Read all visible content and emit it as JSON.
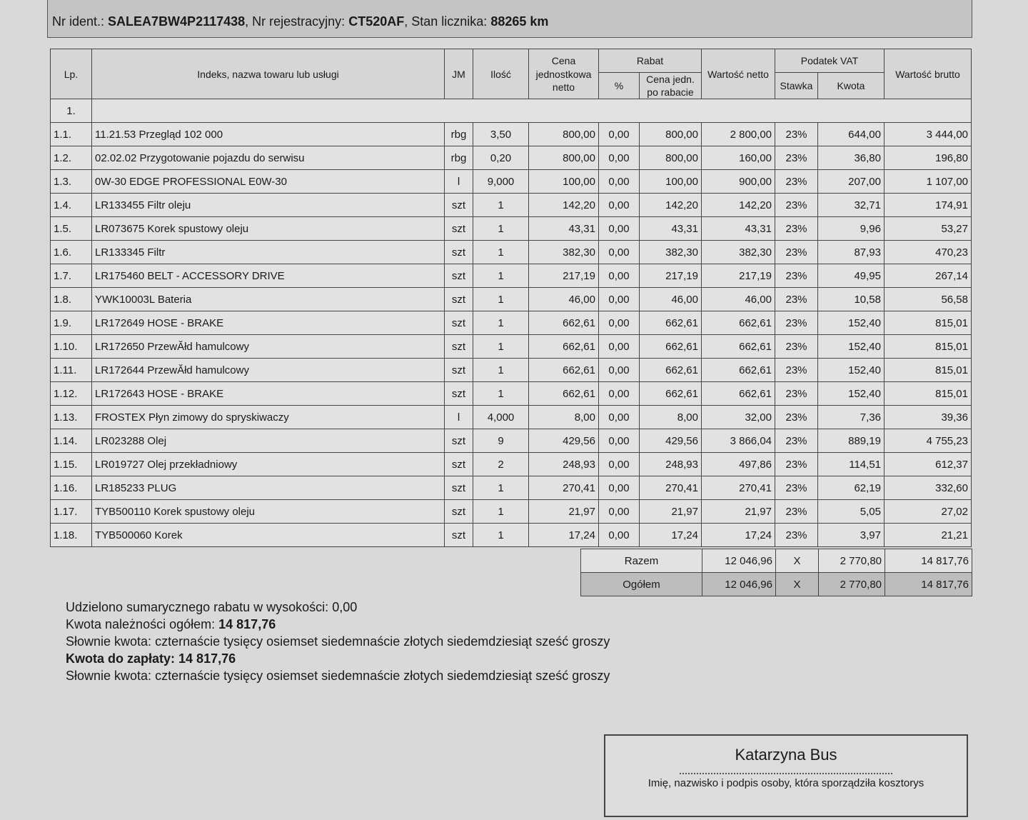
{
  "vehicle": {
    "ident_label": "Nr ident.:",
    "ident_value": "SALEA7BW4P2117438",
    "reg_label": ", Nr rejestracyjny:",
    "reg_value": "CT520AF",
    "odo_label": ", Stan licznika:",
    "odo_value": "88265 km"
  },
  "headers": {
    "lp": "Lp.",
    "name": "Indeks, nazwa towaru lub usługi",
    "jm": "JM",
    "qty": "Ilość",
    "price": "Cena jednostkowa netto",
    "discount": "Rabat",
    "discount_pct": "%",
    "discount_price": "Cena jedn. po rabacie",
    "net": "Wartość netto",
    "vat": "Podatek VAT",
    "vat_rate": "Stawka",
    "vat_amount": "Kwota",
    "gross": "Wartość brutto"
  },
  "group_label": "1.",
  "rows": [
    [
      "1.1.",
      "11.21.53 Przegląd 102 000",
      "rbg",
      "3,50",
      "800,00",
      "0,00",
      "800,00",
      "2 800,00",
      "23%",
      "644,00",
      "3 444,00"
    ],
    [
      "1.2.",
      "02.02.02 Przygotowanie pojazdu do serwisu",
      "rbg",
      "0,20",
      "800,00",
      "0,00",
      "800,00",
      "160,00",
      "23%",
      "36,80",
      "196,80"
    ],
    [
      "1.3.",
      "0W-30 EDGE PROFESSIONAL E0W-30",
      "l",
      "9,000",
      "100,00",
      "0,00",
      "100,00",
      "900,00",
      "23%",
      "207,00",
      "1 107,00"
    ],
    [
      "1.4.",
      "LR133455 Filtr oleju",
      "szt",
      "1",
      "142,20",
      "0,00",
      "142,20",
      "142,20",
      "23%",
      "32,71",
      "174,91"
    ],
    [
      "1.5.",
      "LR073675 Korek spustowy oleju",
      "szt",
      "1",
      "43,31",
      "0,00",
      "43,31",
      "43,31",
      "23%",
      "9,96",
      "53,27"
    ],
    [
      "1.6.",
      "LR133345 Filtr",
      "szt",
      "1",
      "382,30",
      "0,00",
      "382,30",
      "382,30",
      "23%",
      "87,93",
      "470,23"
    ],
    [
      "1.7.",
      "LR175460 BELT - ACCESSORY DRIVE",
      "szt",
      "1",
      "217,19",
      "0,00",
      "217,19",
      "217,19",
      "23%",
      "49,95",
      "267,14"
    ],
    [
      "1.8.",
      "YWK10003L Bateria",
      "szt",
      "1",
      "46,00",
      "0,00",
      "46,00",
      "46,00",
      "23%",
      "10,58",
      "56,58"
    ],
    [
      "1.9.",
      "LR172649 HOSE - BRAKE",
      "szt",
      "1",
      "662,61",
      "0,00",
      "662,61",
      "662,61",
      "23%",
      "152,40",
      "815,01"
    ],
    [
      "1.10.",
      "LR172650 PrzewĂłd hamulcowy",
      "szt",
      "1",
      "662,61",
      "0,00",
      "662,61",
      "662,61",
      "23%",
      "152,40",
      "815,01"
    ],
    [
      "1.11.",
      "LR172644 PrzewĂłd hamulcowy",
      "szt",
      "1",
      "662,61",
      "0,00",
      "662,61",
      "662,61",
      "23%",
      "152,40",
      "815,01"
    ],
    [
      "1.12.",
      "LR172643 HOSE - BRAKE",
      "szt",
      "1",
      "662,61",
      "0,00",
      "662,61",
      "662,61",
      "23%",
      "152,40",
      "815,01"
    ],
    [
      "1.13.",
      "FROSTEX Płyn zimowy do spryskiwaczy",
      "l",
      "4,000",
      "8,00",
      "0,00",
      "8,00",
      "32,00",
      "23%",
      "7,36",
      "39,36"
    ],
    [
      "1.14.",
      "LR023288 Olej",
      "szt",
      "9",
      "429,56",
      "0,00",
      "429,56",
      "3 866,04",
      "23%",
      "889,19",
      "4 755,23"
    ],
    [
      "1.15.",
      "LR019727 Olej przekładniowy",
      "szt",
      "2",
      "248,93",
      "0,00",
      "248,93",
      "497,86",
      "23%",
      "114,51",
      "612,37"
    ],
    [
      "1.16.",
      "LR185233 PLUG",
      "szt",
      "1",
      "270,41",
      "0,00",
      "270,41",
      "270,41",
      "23%",
      "62,19",
      "332,60"
    ],
    [
      "1.17.",
      "TYB500110 Korek spustowy oleju",
      "szt",
      "1",
      "21,97",
      "0,00",
      "21,97",
      "21,97",
      "23%",
      "5,05",
      "27,02"
    ],
    [
      "1.18.",
      "TYB500060 Korek",
      "szt",
      "1",
      "17,24",
      "0,00",
      "17,24",
      "17,24",
      "23%",
      "3,97",
      "21,21"
    ]
  ],
  "totals": [
    {
      "label": "Razem",
      "net": "12 046,96",
      "rate": "X",
      "vat": "2 770,80",
      "gross": "14 817,76"
    },
    {
      "label": "Ogółem",
      "net": "12 046,96",
      "rate": "X",
      "vat": "2 770,80",
      "gross": "14 817,76"
    }
  ],
  "summary": {
    "discount_label": "Udzielono sumarycznego rabatu w wysokości:",
    "discount_value": "0,00",
    "due_label": "Kwota należności ogółem:",
    "due_value": "14 817,76",
    "words_label": "Słownie kwota:",
    "words_value": "czternaście tysięcy osiemset siedemnaście złotych siedemdziesiąt sześć groszy",
    "pay_label": "Kwota do zapłaty:",
    "pay_value": "14 817,76",
    "words2_label": "Słownie kwota:",
    "words2_value": "czternaście tysięcy osiemset siedemnaście złotych siedemdziesiąt sześć groszy"
  },
  "signature": {
    "name": "Katarzyna Bus",
    "label": "Imię, nazwisko i podpis osoby, która sporządziła kosztorys"
  }
}
